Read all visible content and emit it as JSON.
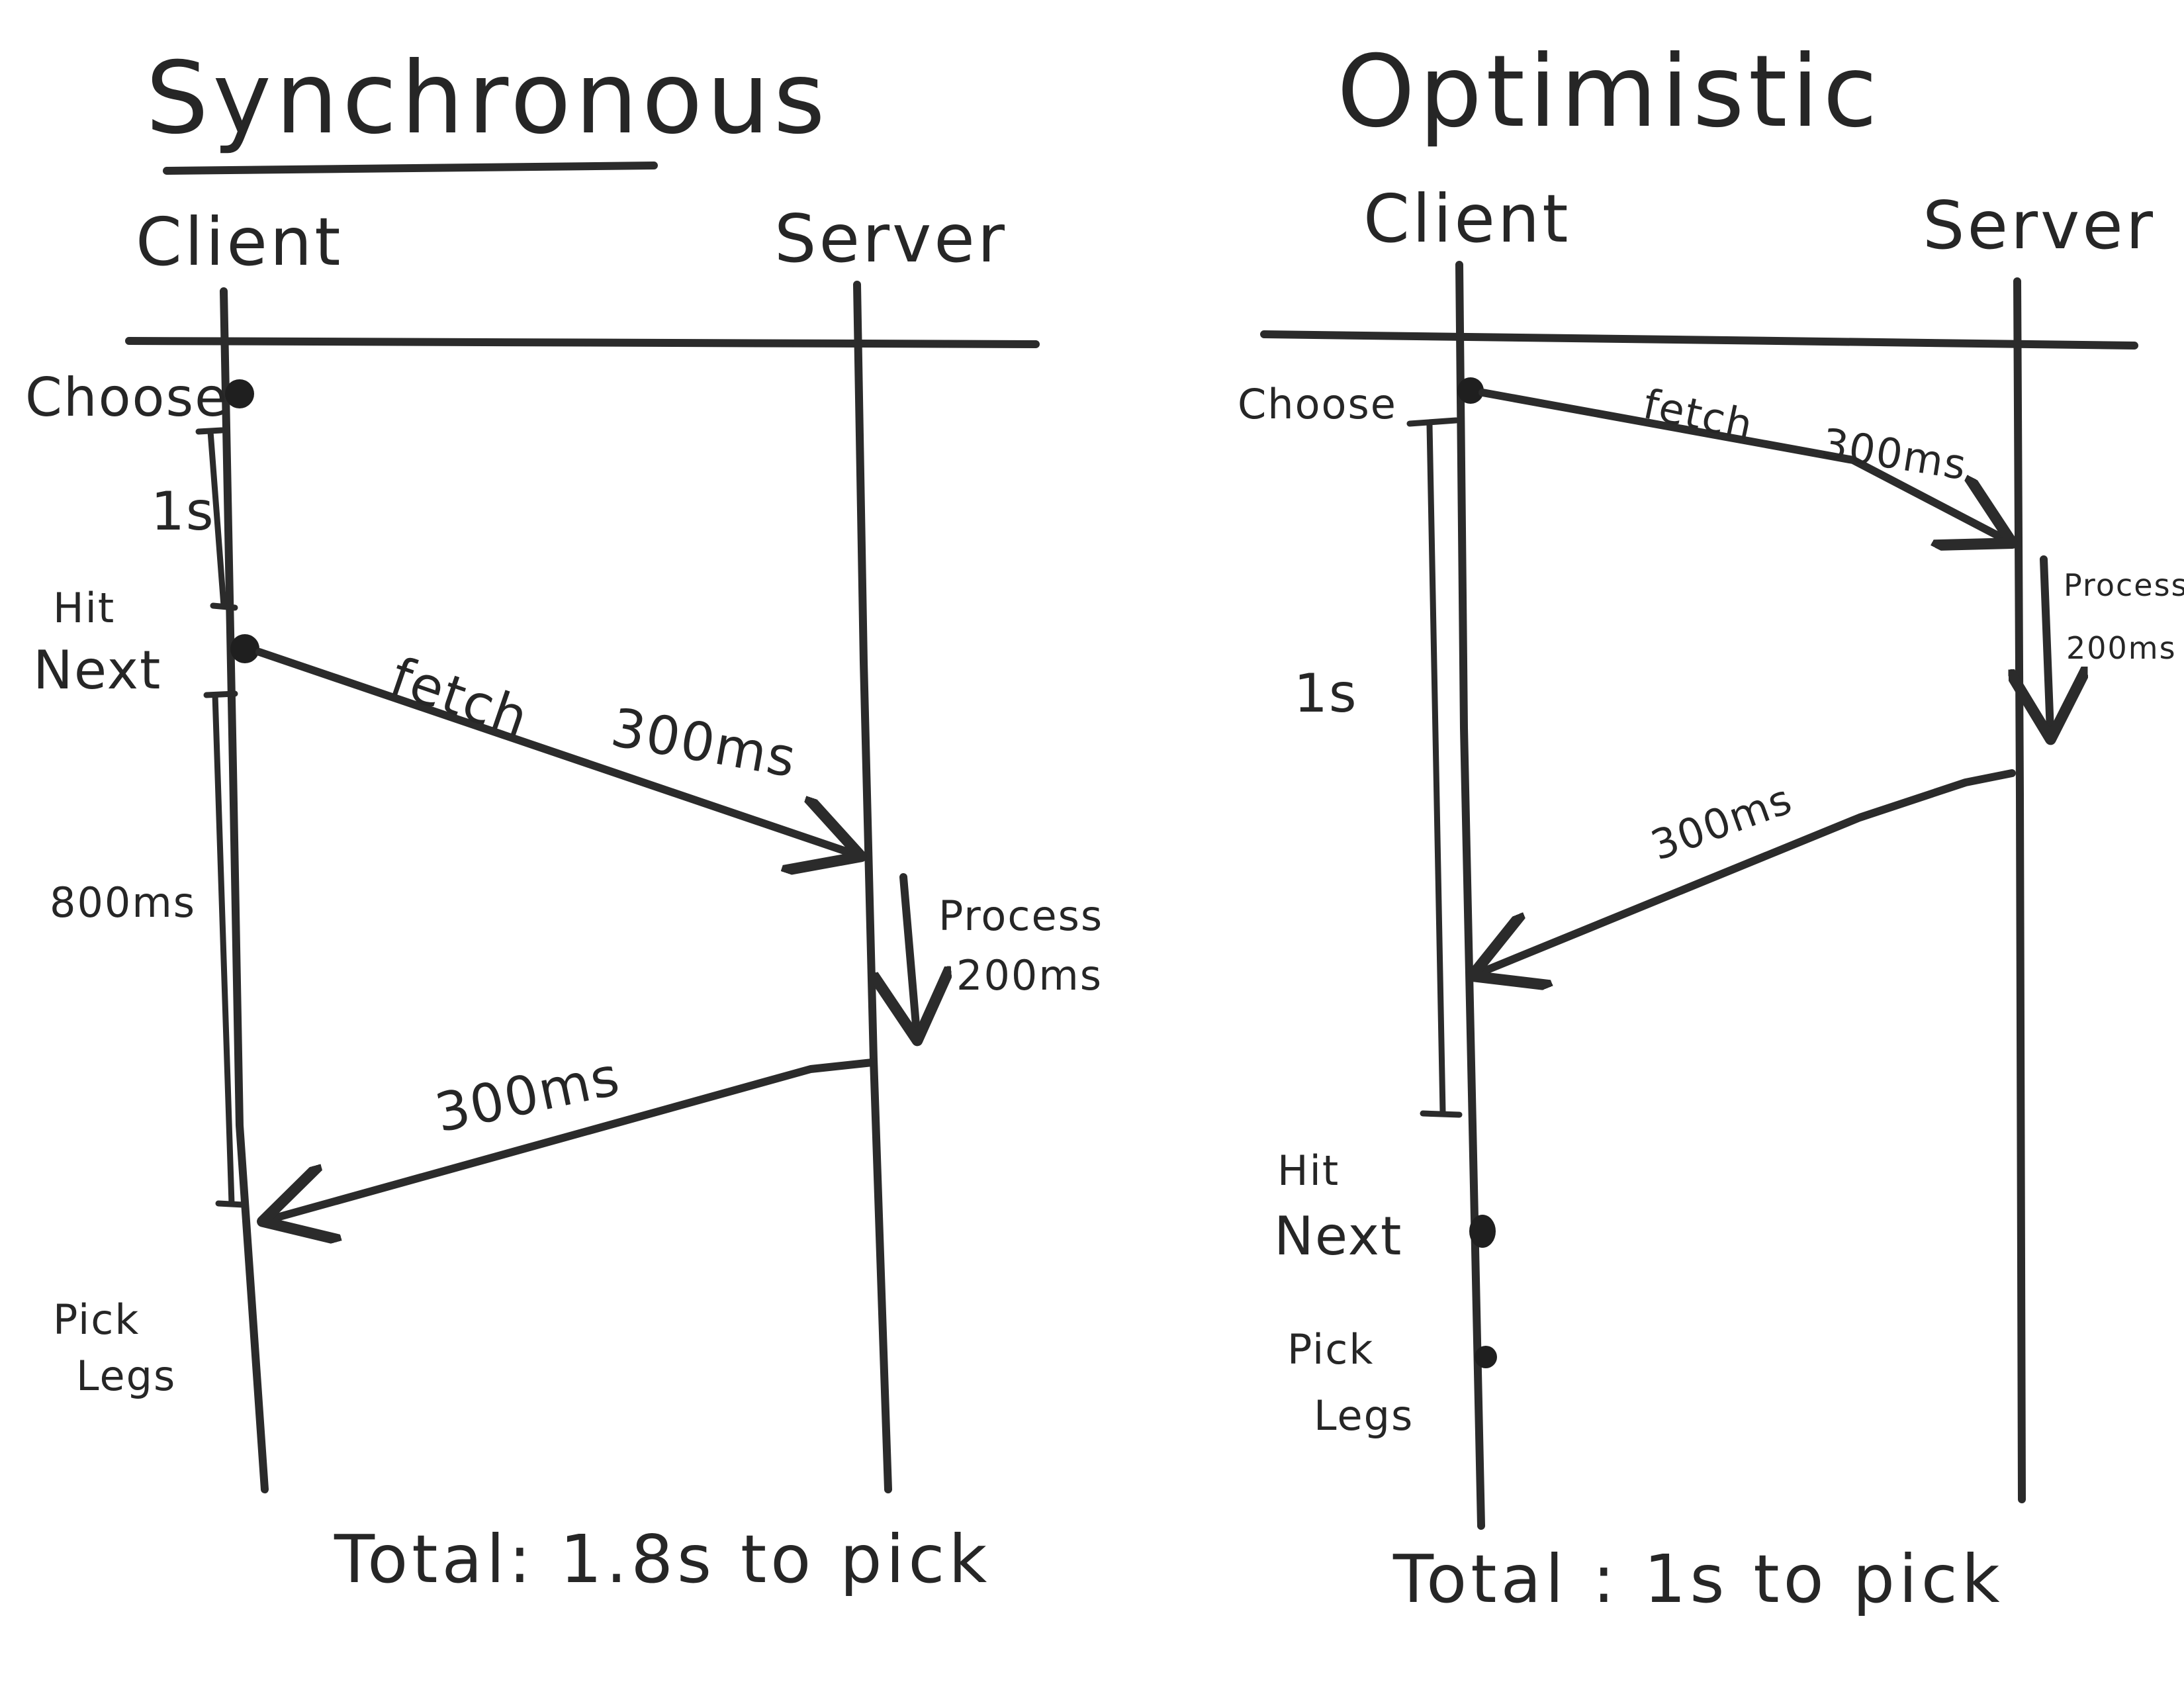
{
  "synchronous": {
    "title": "Synchronous",
    "client_header": "Client",
    "server_header": "Server",
    "event_choose": "Choose",
    "duration_choose_to_next": "1s",
    "event_hit": "Hit",
    "event_next": "Next",
    "request_label": "fetch",
    "request_latency": "300ms",
    "process_label": "Process",
    "process_latency": "200ms",
    "response_latency": "300ms",
    "wait_duration": "800ms",
    "event_pick": "Pick",
    "event_legs": "Legs",
    "total": "Total:  1.8s to pick"
  },
  "optimistic": {
    "title": "Optimistic",
    "client_header": "Client",
    "server_header": "Server",
    "event_choose": "Choose",
    "request_label": "fetch",
    "request_latency": "300ms",
    "process_label": "Process",
    "process_latency": "200ms",
    "response_latency": "300ms",
    "duration_choose_to_next": "1s",
    "event_hit": "Hit",
    "event_next": "Next",
    "event_pick": "Pick",
    "event_legs": "Legs",
    "total": "Total : 1s to pick"
  }
}
